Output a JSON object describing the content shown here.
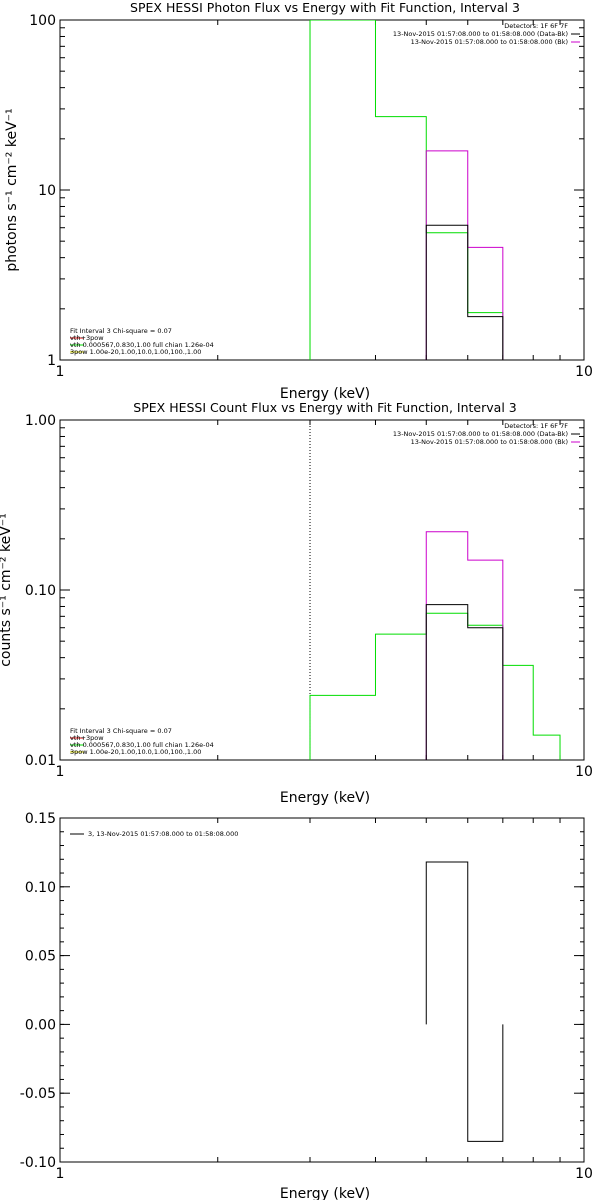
{
  "colors": {
    "black": "#000000",
    "magenta": "#cc00cc",
    "green": "#00dd00",
    "red": "#dd0000",
    "yellow": "#cccc00"
  },
  "chart_data": [
    {
      "type": "line",
      "step": true,
      "title": "SPEX HESSI Photon Flux vs Energy with Fit Function, Interval 3",
      "xlabel": "Energy (keV)",
      "ylabel": "photons s⁻¹ cm⁻² keV⁻¹",
      "xscale": "log",
      "yscale": "log",
      "xlim": [
        1,
        10
      ],
      "ylim": [
        1,
        100
      ],
      "xticks": [
        {
          "v": 1,
          "t": "1"
        },
        {
          "v": 10,
          "t": "10"
        }
      ],
      "yticks": [
        {
          "v": 1,
          "t": "1"
        },
        {
          "v": 10,
          "t": "10"
        },
        {
          "v": 100,
          "t": "100"
        }
      ],
      "legend_right": [
        {
          "text": "Detectors: 1F 6F 7F",
          "color": ""
        },
        {
          "text": "13-Nov-2015 01:57:08.000 to 01:58:08.000 (Data-Bk)",
          "color": "#000000"
        },
        {
          "text": "13-Nov-2015 01:57:08.000 to 01:58:08.000 (Bk)",
          "color": "#cc00cc"
        }
      ],
      "legend_left": [
        {
          "text": "Fit Interval 3   Chi-square = 0.07",
          "color": ""
        },
        {
          "text": "vth+3pow",
          "color": "#dd0000"
        },
        {
          "text": "vth 0.000567,0.830,1.00  full chian 1.26e-04",
          "color": "#00dd00"
        },
        {
          "text": "3pow 1.00e-20,1.00,10.0,1.00,100.,1.00",
          "color": "#cccc00"
        }
      ],
      "vline": {
        "x": 3.0,
        "color": "#00dd00",
        "style": "solid"
      },
      "series": [
        {
          "color": "#00dd00",
          "steps": [
            [
              3.0,
              4.0,
              100
            ],
            [
              4.0,
              5.0,
              27
            ],
            [
              5.0,
              6.0,
              5.6
            ],
            [
              6.0,
              7.0,
              1.9
            ]
          ]
        },
        {
          "color": "#cc00cc",
          "steps": [
            [
              5.0,
              6.0,
              17
            ],
            [
              6.0,
              7.0,
              4.6
            ]
          ]
        },
        {
          "color": "#000000",
          "steps": [
            [
              5.0,
              6.0,
              6.2
            ],
            [
              6.0,
              7.0,
              1.8
            ]
          ]
        }
      ]
    },
    {
      "type": "line",
      "step": true,
      "title": "SPEX HESSI Count Flux vs Energy with Fit Function, Interval 3",
      "xlabel": "Energy (keV)",
      "ylabel": "counts s⁻¹ cm⁻² keV⁻¹",
      "xscale": "log",
      "yscale": "log",
      "xlim": [
        1,
        10
      ],
      "ylim": [
        0.01,
        1.0
      ],
      "xticks": [
        {
          "v": 1,
          "t": "1"
        },
        {
          "v": 10,
          "t": "10"
        }
      ],
      "yticks": [
        {
          "v": 0.01,
          "t": "0.01"
        },
        {
          "v": 0.1,
          "t": "0.10"
        },
        {
          "v": 1.0,
          "t": "1.00"
        }
      ],
      "legend_right": [
        {
          "text": "Detectors: 1F 6F 7F",
          "color": ""
        },
        {
          "text": "13-Nov-2015 01:57:08.000 to 01:58:08.000 (Data-Bk)",
          "color": "#000000"
        },
        {
          "text": "13-Nov-2015 01:57:08.000 to 01:58:08.000 (Bk)",
          "color": "#cc00cc"
        }
      ],
      "legend_left": [
        {
          "text": "Fit Interval 3   Chi-square = 0.07",
          "color": ""
        },
        {
          "text": "vth+3pow",
          "color": "#dd0000"
        },
        {
          "text": "vth 0.000567,0.830,1.00  full chian 1.26e-04",
          "color": "#00dd00"
        },
        {
          "text": "3pow 1.00e-20,1.00,10.0,1.00,100.,1.00",
          "color": "#cccc00"
        }
      ],
      "vline": {
        "x": 3.0,
        "color": "#000000",
        "style": "dotted"
      },
      "series": [
        {
          "color": "#00dd00",
          "steps": [
            [
              3.0,
              4.0,
              0.024
            ],
            [
              4.0,
              5.0,
              0.055
            ],
            [
              5.0,
              6.0,
              0.073
            ],
            [
              6.0,
              7.0,
              0.062
            ],
            [
              7.0,
              8.0,
              0.036
            ],
            [
              8.0,
              9.0,
              0.014
            ]
          ]
        },
        {
          "color": "#cc00cc",
          "steps": [
            [
              5.0,
              6.0,
              0.22
            ],
            [
              6.0,
              7.0,
              0.15
            ]
          ]
        },
        {
          "color": "#000000",
          "steps": [
            [
              5.0,
              6.0,
              0.082
            ],
            [
              6.0,
              7.0,
              0.06
            ]
          ]
        }
      ]
    },
    {
      "type": "line",
      "step": true,
      "title": "",
      "xlabel": "Energy (keV)",
      "ylabel": "",
      "xscale": "log",
      "yscale": "linear",
      "xlim": [
        1,
        10
      ],
      "ylim": [
        -0.1,
        0.15
      ],
      "xticks": [
        {
          "v": 1,
          "t": "1"
        },
        {
          "v": 10,
          "t": "10"
        }
      ],
      "yticks": [
        {
          "v": -0.1,
          "t": "-0.10"
        },
        {
          "v": -0.05,
          "t": "-0.05"
        },
        {
          "v": 0.0,
          "t": "0.00"
        },
        {
          "v": 0.05,
          "t": "0.05"
        },
        {
          "v": 0.1,
          "t": "0.10"
        },
        {
          "v": 0.15,
          "t": "0.15"
        }
      ],
      "legend_right": [],
      "legend_left": [
        {
          "text": "3, 13-Nov-2015 01:57:08.000 to 01:58:08.000",
          "color": "#000000"
        }
      ],
      "vline": null,
      "series": [
        {
          "color": "#000000",
          "steps": [
            [
              5.0,
              6.0,
              0.118
            ],
            [
              6.0,
              7.0,
              -0.085
            ]
          ]
        }
      ]
    }
  ]
}
